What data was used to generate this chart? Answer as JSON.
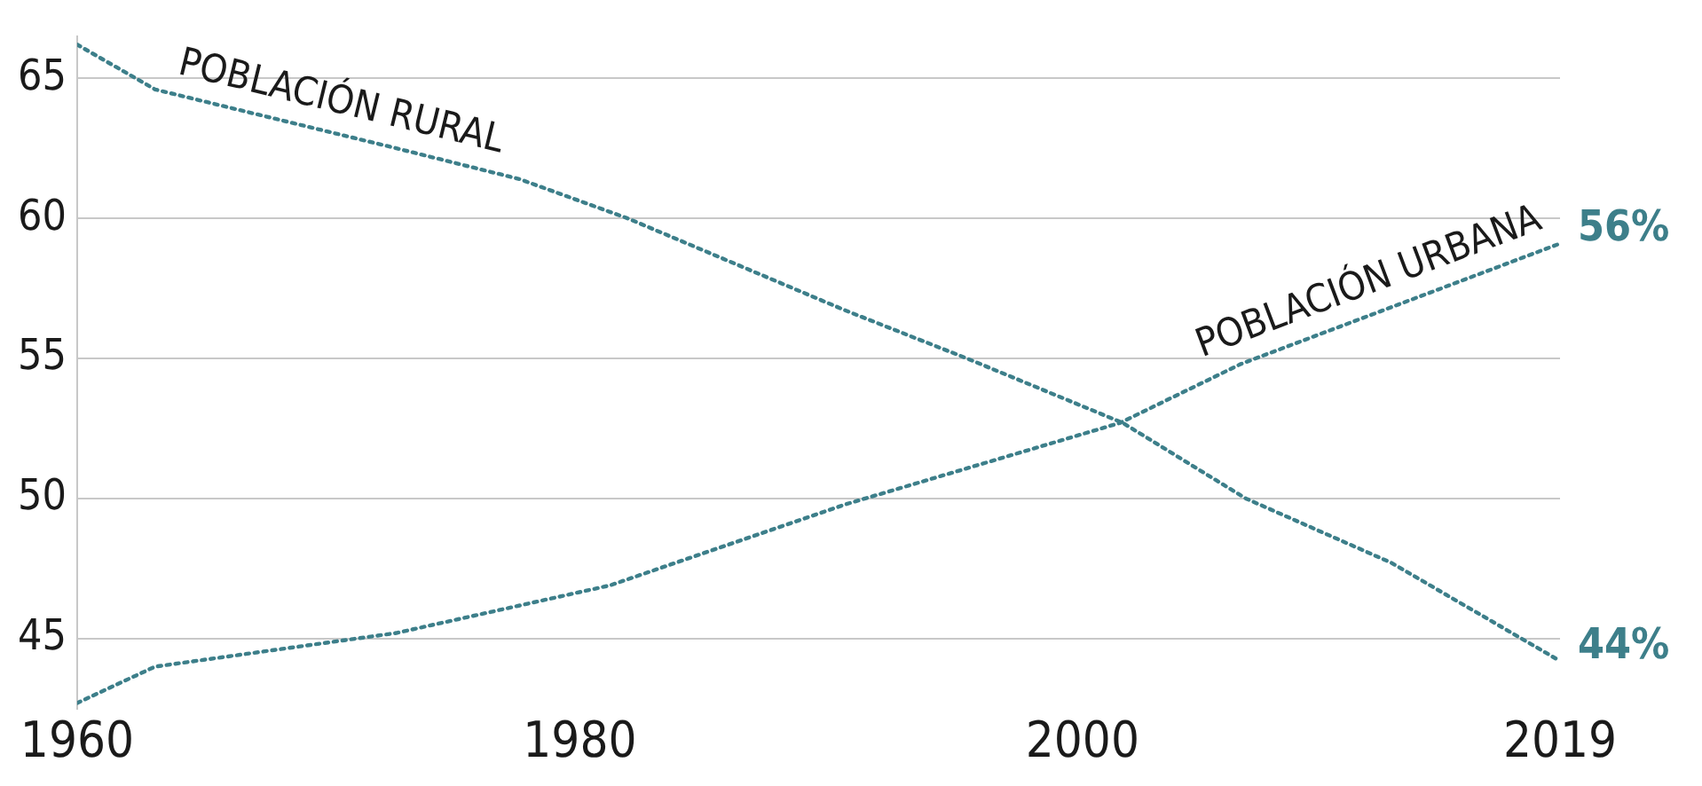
{
  "chart_data": {
    "type": "line",
    "xlim": [
      1960,
      2019
    ],
    "xticks": [
      1960,
      1980,
      2000,
      2019
    ],
    "ylim": [
      42.5,
      66.5
    ],
    "yticks": [
      45,
      50,
      55,
      60,
      65
    ],
    "grid": "y",
    "legend": false,
    "marker": "none",
    "line_style": "dotted",
    "series": [
      {
        "name": "POBLACIÓN URBANA",
        "color": "#3d7f8a",
        "x": [
          1960,
          1963.1,
          1972.7,
          1981.2,
          1990.6,
          2001.5,
          2006.3,
          2019
        ],
        "values": [
          42.7,
          44.0,
          45.2,
          46.9,
          49.8,
          52.7,
          54.8,
          59.1
        ]
      },
      {
        "name": "POBLACIÓN RURAL",
        "color": "#3d7f8a",
        "x": [
          1960,
          1963.1,
          1972.7,
          1977.6,
          1981.9,
          1990.6,
          1995.4,
          2001.6,
          2006.5,
          2012.3,
          2019
        ],
        "values": [
          66.2,
          64.6,
          62.5,
          61.4,
          60.0,
          56.7,
          55.0,
          52.7,
          50.0,
          47.7,
          44.2
        ]
      }
    ],
    "annotations": [
      "56%",
      "44%"
    ]
  }
}
